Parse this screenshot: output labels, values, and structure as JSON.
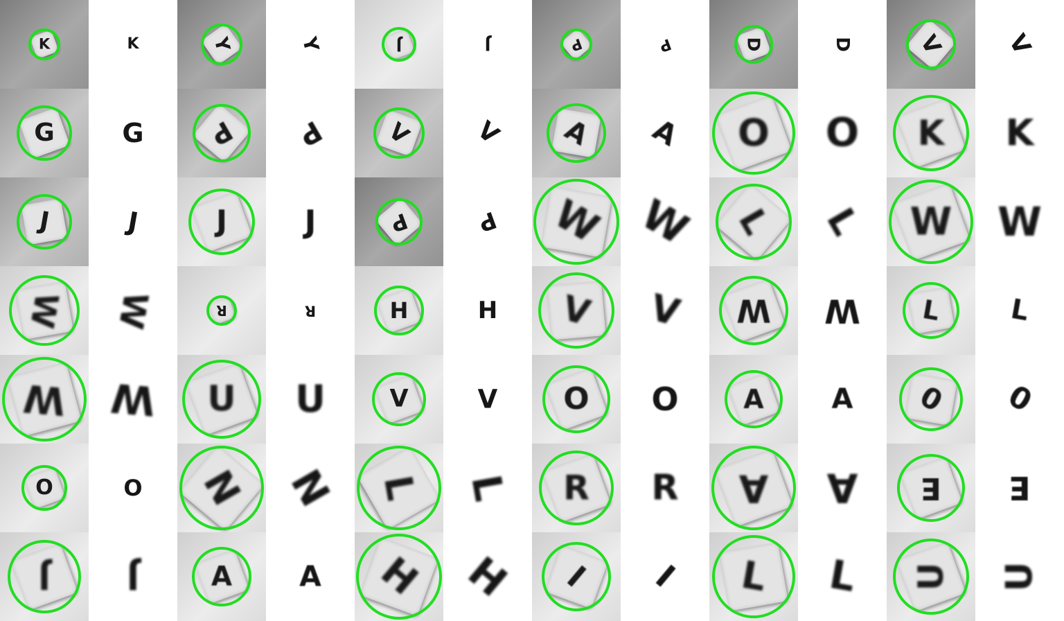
{
  "ring_color": "#22dd22",
  "rows": [
    [
      {
        "letter": "K",
        "ring": 46,
        "rot": 0,
        "tone": "dark"
      },
      {
        "letter": "Y",
        "ring": 60,
        "rot": 75,
        "tone": "dark"
      },
      {
        "letter": "J",
        "ring": 50,
        "rot": 180,
        "tone": "light"
      },
      {
        "letter": "P",
        "ring": 46,
        "rot": 160,
        "tone": "dark"
      },
      {
        "letter": "D",
        "ring": 56,
        "rot": 90,
        "tone": "dark"
      },
      {
        "letter": "V",
        "ring": 72,
        "rot": 60,
        "tone": "dark"
      }
    ],
    [
      {
        "letter": "G",
        "ring": 80,
        "rot": 0,
        "tone": "normal"
      },
      {
        "letter": "P",
        "ring": 84,
        "rot": 150,
        "tone": "normal"
      },
      {
        "letter": "V",
        "ring": 74,
        "rot": 40,
        "tone": "normal"
      },
      {
        "letter": "A",
        "ring": 86,
        "rot": 30,
        "tone": "normal"
      },
      {
        "letter": "O",
        "ring": 120,
        "rot": 0,
        "tone": "light"
      },
      {
        "letter": "K",
        "ring": 110,
        "rot": 0,
        "tone": "light"
      }
    ],
    [
      {
        "letter": "J",
        "ring": 80,
        "rot": 10,
        "tone": "normal"
      },
      {
        "letter": "J",
        "ring": 96,
        "rot": 0,
        "tone": "light"
      },
      {
        "letter": "P",
        "ring": 68,
        "rot": 160,
        "tone": "dark"
      },
      {
        "letter": "W",
        "ring": 124,
        "rot": 30,
        "tone": "light"
      },
      {
        "letter": "L",
        "ring": 110,
        "rot": 60,
        "tone": "light"
      },
      {
        "letter": "W",
        "ring": 122,
        "rot": 0,
        "tone": "light"
      }
    ],
    [
      {
        "letter": "W",
        "ring": 102,
        "rot": 100,
        "tone": "light"
      },
      {
        "letter": "R",
        "ring": 44,
        "rot": 180,
        "tone": "light"
      },
      {
        "letter": "H",
        "ring": 72,
        "rot": 0,
        "tone": "light"
      },
      {
        "letter": "V",
        "ring": 110,
        "rot": 15,
        "tone": "light"
      },
      {
        "letter": "W",
        "ring": 100,
        "rot": 180,
        "tone": "light"
      },
      {
        "letter": "L",
        "ring": 82,
        "rot": 10,
        "tone": "light"
      }
    ],
    [
      {
        "letter": "W",
        "ring": 122,
        "rot": 185,
        "tone": "light"
      },
      {
        "letter": "U",
        "ring": 114,
        "rot": 0,
        "tone": "light"
      },
      {
        "letter": "V",
        "ring": 78,
        "rot": 0,
        "tone": "light"
      },
      {
        "letter": "O",
        "ring": 98,
        "rot": 0,
        "tone": "light"
      },
      {
        "letter": "A",
        "ring": 84,
        "rot": 0,
        "tone": "light"
      },
      {
        "letter": "0",
        "ring": 92,
        "rot": 30,
        "tone": "light"
      }
    ],
    [
      {
        "letter": "O",
        "ring": 66,
        "rot": 0,
        "tone": "light"
      },
      {
        "letter": "N",
        "ring": 122,
        "rot": 60,
        "tone": "light"
      },
      {
        "letter": "L",
        "ring": 122,
        "rot": 80,
        "tone": "light"
      },
      {
        "letter": "R",
        "ring": 108,
        "rot": 0,
        "tone": "light"
      },
      {
        "letter": "A",
        "ring": 122,
        "rot": 180,
        "tone": "light"
      },
      {
        "letter": "E",
        "ring": 98,
        "rot": 180,
        "tone": "light"
      }
    ],
    [
      {
        "letter": "J",
        "ring": 106,
        "rot": 180,
        "tone": "light"
      },
      {
        "letter": "A",
        "ring": 86,
        "rot": 0,
        "tone": "light"
      },
      {
        "letter": "H",
        "ring": 124,
        "rot": 40,
        "tone": "light"
      },
      {
        "letter": "I",
        "ring": 100,
        "rot": 40,
        "tone": "light"
      },
      {
        "letter": "L",
        "ring": 120,
        "rot": 10,
        "tone": "light"
      },
      {
        "letter": "U",
        "ring": 110,
        "rot": 270,
        "tone": "light"
      }
    ]
  ]
}
